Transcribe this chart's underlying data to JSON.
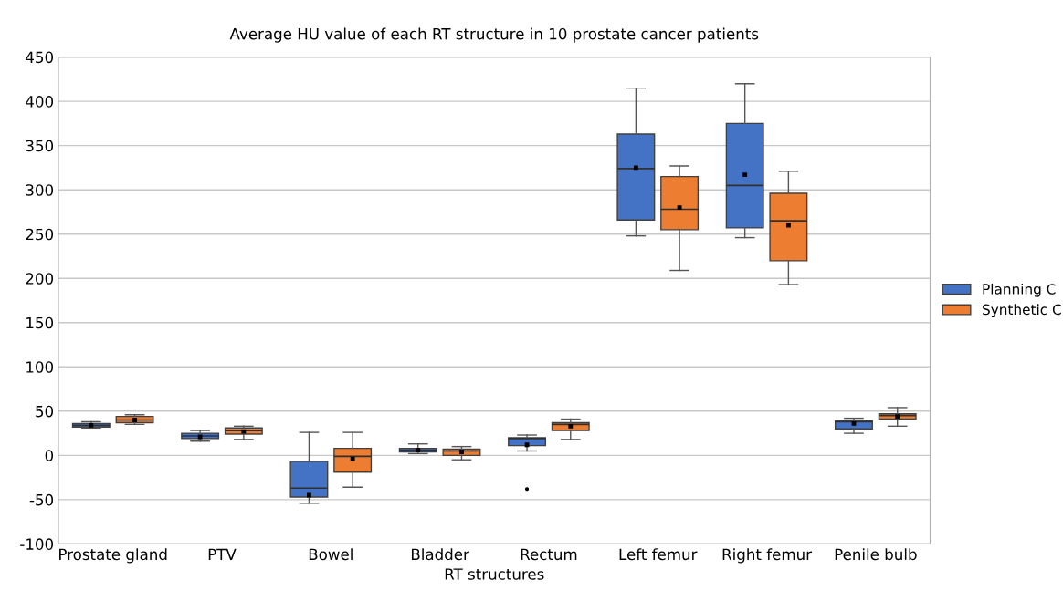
{
  "chart_data": {
    "type": "box",
    "title": "Average HU value of each RT structure in 10 prostate cancer patients",
    "xlabel": "RT structures",
    "categories": [
      "Prostate gland",
      "PTV",
      "Bowel",
      "Bladder",
      "Rectum",
      "Left femur",
      "Right femur",
      "Penile bulb"
    ],
    "series": [
      {
        "name": "Planning C",
        "color": "#4472c4",
        "boxes": [
          {
            "low": 31,
            "q1": 32,
            "median": 34,
            "q3": 36,
            "high": 38,
            "mean": 34
          },
          {
            "low": 16,
            "q1": 19,
            "median": 22,
            "q3": 25,
            "high": 28,
            "mean": 21
          },
          {
            "low": -54,
            "q1": -47,
            "median": -37,
            "q3": -7,
            "high": 26,
            "mean": -45
          },
          {
            "low": 2,
            "q1": 4,
            "median": 6,
            "q3": 8,
            "high": 13,
            "mean": 6
          },
          {
            "low": 5,
            "q1": 11,
            "median": 19,
            "q3": 20,
            "high": 23,
            "mean": 12,
            "outliers": [
              -38
            ]
          },
          {
            "low": 248,
            "q1": 266,
            "median": 324,
            "q3": 363,
            "high": 415,
            "mean": 325
          },
          {
            "low": 246,
            "q1": 257,
            "median": 305,
            "q3": 375,
            "high": 420,
            "mean": 317
          },
          {
            "low": 25,
            "q1": 30,
            "median": 38,
            "q3": 39,
            "high": 42,
            "mean": 36
          }
        ]
      },
      {
        "name": "Synthetic C",
        "color": "#ed7d31",
        "boxes": [
          {
            "low": 35,
            "q1": 37,
            "median": 40,
            "q3": 44,
            "high": 46,
            "mean": 40
          },
          {
            "low": 18,
            "q1": 24,
            "median": 28,
            "q3": 31,
            "high": 33,
            "mean": 27
          },
          {
            "low": -36,
            "q1": -19,
            "median": -1,
            "q3": 8,
            "high": 26,
            "mean": -4
          },
          {
            "low": -5,
            "q1": 0,
            "median": 5,
            "q3": 7,
            "high": 10,
            "mean": 4
          },
          {
            "low": 18,
            "q1": 28,
            "median": 35,
            "q3": 37,
            "high": 41,
            "mean": 33
          },
          {
            "low": 209,
            "q1": 255,
            "median": 278,
            "q3": 315,
            "high": 327,
            "mean": 280
          },
          {
            "low": 193,
            "q1": 220,
            "median": 265,
            "q3": 296,
            "high": 321,
            "mean": 260
          },
          {
            "low": 33,
            "q1": 41,
            "median": 45,
            "q3": 47,
            "high": 54,
            "mean": 44
          }
        ]
      }
    ],
    "ylim": [
      -100,
      450
    ],
    "yticks": [
      -100,
      -50,
      0,
      50,
      100,
      150,
      200,
      250,
      300,
      350,
      400,
      450
    ],
    "grid": "y",
    "legend": "right"
  }
}
